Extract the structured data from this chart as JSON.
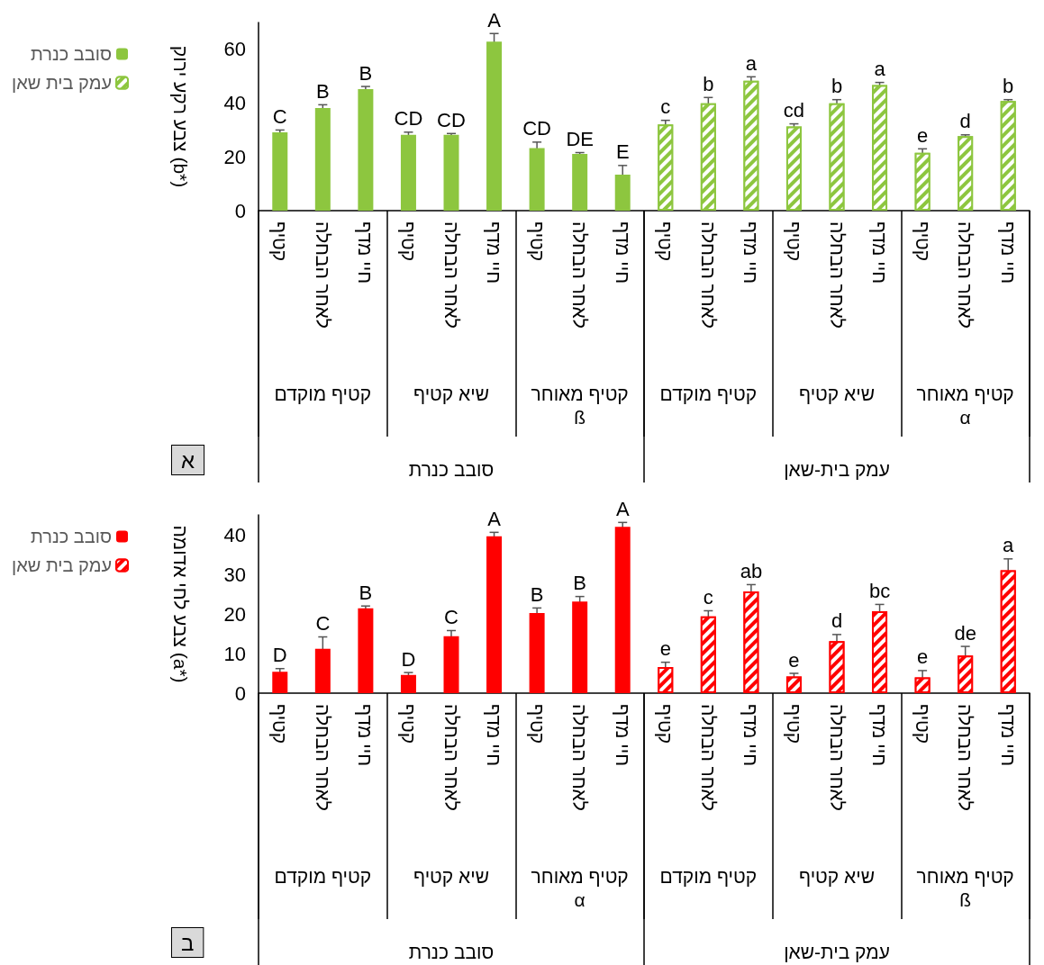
{
  "chart_data": [
    {
      "type": "bar",
      "ylabel": "צבע רקע ירוק (b*)",
      "categories": [
        "קטיף",
        "לאחר הבחלה",
        "חיי מדף",
        "קטיף",
        "לאחר הבחלה",
        "חיי מדף",
        "קטיף",
        "לאחר הבחלה",
        "חיי מדף",
        "קטיף",
        "לאחר הבחלה",
        "חיי מדף",
        "קטיף",
        "לאחר הבחלה",
        "חיי מדף",
        "קטיף",
        "לאחר הבחלה",
        "חיי מדף"
      ],
      "series": [
        {
          "name": "סובב כנרת",
          "color": "#8dc63f",
          "values": [
            29.1,
            38.2,
            45.2,
            28.2,
            28.2,
            62.9,
            23.3,
            21.1,
            13.4,
            null,
            null,
            null,
            null,
            null,
            null,
            null,
            null,
            null
          ],
          "errors": [
            0.9,
            1.2,
            1,
            1,
            0.5,
            3,
            2.2,
            0.5,
            3.4,
            null,
            null,
            null,
            null,
            null,
            null,
            null,
            null,
            null
          ],
          "value_labels": [
            "C",
            "B",
            "B",
            "CD",
            "CD",
            "A",
            "CD",
            "DE",
            "E",
            null,
            null,
            null,
            null,
            null,
            null,
            null,
            null,
            null
          ]
        },
        {
          "name": "עמק בית שאן",
          "color": "#8dc63f",
          "values": [
            null,
            null,
            null,
            null,
            null,
            null,
            null,
            null,
            null,
            32.1,
            39.9,
            48.3,
            31.3,
            39.9,
            46.7,
            21.5,
            27.7,
            40.8
          ],
          "errors": [
            null,
            null,
            null,
            null,
            null,
            null,
            null,
            null,
            null,
            1.5,
            2.2,
            1.5,
            1,
            1.4,
            1,
            1.5,
            0.5,
            0.5
          ],
          "value_labels": [
            null,
            null,
            null,
            null,
            null,
            null,
            null,
            null,
            null,
            "c",
            "b",
            "a",
            "cd",
            "b",
            "a",
            "e",
            "d",
            "b"
          ]
        }
      ],
      "ylim": [
        0,
        70
      ],
      "yticks": [
        0,
        20,
        40,
        60
      ],
      "legend": "left",
      "annotations": [
        "קטיף מוקדם",
        "שיא קטיף",
        "קטיף מאוחר\nß",
        "קטיף מוקדם",
        "שיא קטיף",
        "קטיף מאוחר\nα",
        "סובב כנרת",
        "עמק בית-שאן",
        "א"
      ]
    },
    {
      "type": "bar",
      "ylabel": "צבע לחי אדומה (a*)",
      "categories": [
        "קטיף",
        "לאחר הבחלה",
        "חיי מדף",
        "קטיף",
        "לאחר הבחלה",
        "חיי מדף",
        "קטיף",
        "לאחר הבחלה",
        "חיי מדף",
        "קטיף",
        "לאחר הבחלה",
        "חיי מדף",
        "קטיף",
        "לאחר הבחלה",
        "חיי מדף",
        "קטיף",
        "לאחר הבחלה",
        "חיי מדף"
      ],
      "series": [
        {
          "name": "סובב כנרת",
          "color": "#ff0000",
          "values": [
            5.4,
            11.2,
            21.4,
            4.6,
            14.4,
            39.6,
            20.2,
            23.1,
            42,
            null,
            null,
            null,
            null,
            null,
            null,
            null,
            null,
            null
          ],
          "errors": [
            0.8,
            3,
            0.6,
            0.6,
            1.4,
            1,
            1.3,
            1.3,
            1.1,
            null,
            null,
            null,
            null,
            null,
            null,
            null,
            null,
            null
          ],
          "value_labels": [
            "D",
            "C",
            "B",
            "D",
            "C",
            "A",
            "B",
            "B",
            "A",
            null,
            null,
            null,
            null,
            null,
            null,
            null,
            null,
            null
          ]
        },
        {
          "name": "עמק בית שאן",
          "color": "#ff0000",
          "values": [
            null,
            null,
            null,
            null,
            null,
            null,
            null,
            null,
            null,
            6.6,
            19.4,
            25.7,
            4.2,
            13.1,
            20.7,
            4,
            9.5,
            31
          ],
          "errors": [
            null,
            null,
            null,
            null,
            null,
            null,
            null,
            null,
            null,
            1.2,
            1.4,
            1.7,
            0.8,
            1.7,
            1.7,
            1.7,
            2.3,
            2.9
          ],
          "value_labels": [
            null,
            null,
            null,
            null,
            null,
            null,
            null,
            null,
            null,
            "e",
            "c",
            "ab",
            "e",
            "d",
            "bc",
            "e",
            "de",
            "a"
          ]
        }
      ],
      "ylim": [
        0,
        45
      ],
      "yticks": [
        0,
        10,
        20,
        30,
        40
      ],
      "legend": "left",
      "annotations": [
        "קטיף מוקדם",
        "שיא קטיף",
        "קטיף מאוחר\nα",
        "קטיף מוקדם",
        "שיא קטיף",
        "קטיף מאוחר\nß",
        "סובב כנרת",
        "עמק בית-שאן",
        "ב"
      ]
    }
  ]
}
